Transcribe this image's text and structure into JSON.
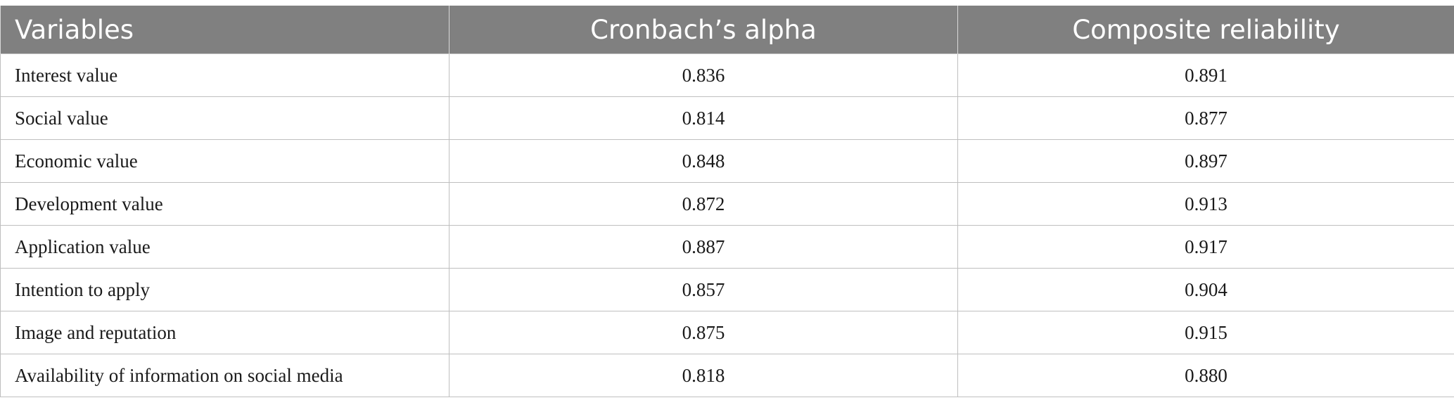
{
  "table": {
    "headers": [
      "Variables",
      "Cronbach’s alpha",
      "Composite reliability"
    ],
    "rows": [
      [
        "Interest value",
        "0.836",
        "0.891"
      ],
      [
        "Social value",
        "0.814",
        "0.877"
      ],
      [
        "Economic value",
        "0.848",
        "0.897"
      ],
      [
        "Development value",
        "0.872",
        "0.913"
      ],
      [
        "Application value",
        "0.887",
        "0.917"
      ],
      [
        "Intention to apply",
        "0.857",
        "0.904"
      ],
      [
        "Image and reputation",
        "0.875",
        "0.915"
      ],
      [
        "Availability of information on social media",
        "0.818",
        "0.880"
      ]
    ]
  },
  "colors": {
    "header_bg": "#808080",
    "header_text": "#ffffff",
    "grid": "#bfbfbf"
  }
}
